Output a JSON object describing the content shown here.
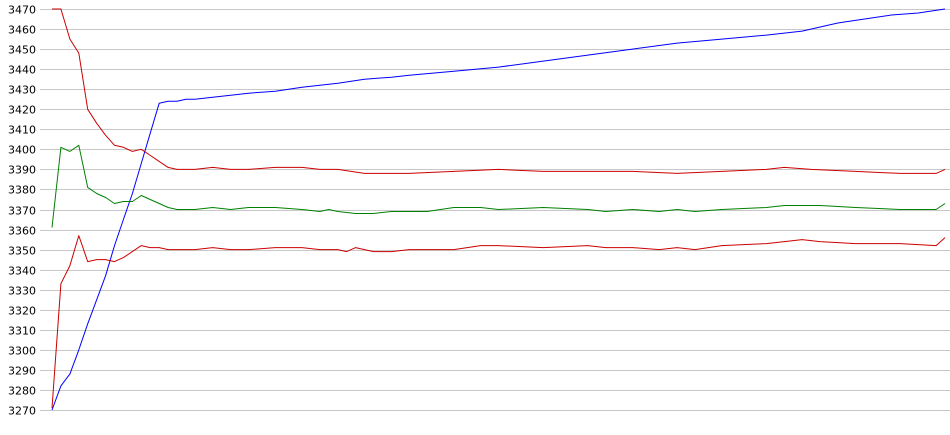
{
  "chart_data": {
    "type": "line",
    "title": "",
    "xlabel": "",
    "ylabel": "",
    "ylim": [
      3270,
      3470
    ],
    "y_ticks": [
      3270,
      3280,
      3290,
      3300,
      3310,
      3320,
      3330,
      3340,
      3350,
      3360,
      3370,
      3380,
      3390,
      3400,
      3410,
      3420,
      3430,
      3440,
      3450,
      3460,
      3470
    ],
    "grid": "horizontal",
    "legend": "none",
    "x_index_range": [
      0,
      100
    ],
    "series": [
      {
        "color": "#0000ff",
        "points": [
          [
            0,
            3270
          ],
          [
            1,
            3282
          ],
          [
            2,
            3288
          ],
          [
            3,
            3300
          ],
          [
            4,
            3313
          ],
          [
            5,
            3325
          ],
          [
            6,
            3337
          ],
          [
            7,
            3352
          ],
          [
            8,
            3365
          ],
          [
            9,
            3378
          ],
          [
            10,
            3393
          ],
          [
            11,
            3408
          ],
          [
            12,
            3423
          ],
          [
            13,
            3424
          ],
          [
            14,
            3424
          ],
          [
            15,
            3425
          ],
          [
            16,
            3425
          ],
          [
            18,
            3426
          ],
          [
            20,
            3427
          ],
          [
            22,
            3428
          ],
          [
            25,
            3429
          ],
          [
            28,
            3431
          ],
          [
            30,
            3432
          ],
          [
            32,
            3433
          ],
          [
            35,
            3435
          ],
          [
            38,
            3436
          ],
          [
            40,
            3437
          ],
          [
            45,
            3439
          ],
          [
            50,
            3441
          ],
          [
            55,
            3444
          ],
          [
            60,
            3447
          ],
          [
            65,
            3450
          ],
          [
            70,
            3453
          ],
          [
            75,
            3455
          ],
          [
            80,
            3457
          ],
          [
            84,
            3459
          ],
          [
            88,
            3463
          ],
          [
            91,
            3465
          ],
          [
            94,
            3467
          ],
          [
            97,
            3468
          ],
          [
            100,
            3470
          ]
        ]
      },
      {
        "color": "#cc0000",
        "points": [
          [
            0,
            3470
          ],
          [
            1,
            3470
          ],
          [
            2,
            3455
          ],
          [
            3,
            3448
          ],
          [
            4,
            3420
          ],
          [
            5,
            3413
          ],
          [
            6,
            3407
          ],
          [
            7,
            3402
          ],
          [
            8,
            3401
          ],
          [
            9,
            3399
          ],
          [
            10,
            3400
          ],
          [
            11,
            3397
          ],
          [
            12,
            3394
          ],
          [
            13,
            3391
          ],
          [
            14,
            3390
          ],
          [
            15,
            3390
          ],
          [
            16,
            3390
          ],
          [
            18,
            3391
          ],
          [
            20,
            3390
          ],
          [
            22,
            3390
          ],
          [
            25,
            3391
          ],
          [
            28,
            3391
          ],
          [
            30,
            3390
          ],
          [
            32,
            3390
          ],
          [
            35,
            3388
          ],
          [
            38,
            3388
          ],
          [
            40,
            3388
          ],
          [
            45,
            3389
          ],
          [
            50,
            3390
          ],
          [
            55,
            3389
          ],
          [
            60,
            3389
          ],
          [
            65,
            3389
          ],
          [
            70,
            3388
          ],
          [
            75,
            3389
          ],
          [
            80,
            3390
          ],
          [
            82,
            3391
          ],
          [
            85,
            3390
          ],
          [
            90,
            3389
          ],
          [
            95,
            3388
          ],
          [
            99,
            3388
          ],
          [
            100,
            3390
          ]
        ]
      },
      {
        "color": "#008000",
        "points": [
          [
            0,
            3361
          ],
          [
            1,
            3401
          ],
          [
            2,
            3399
          ],
          [
            3,
            3402
          ],
          [
            4,
            3381
          ],
          [
            5,
            3378
          ],
          [
            6,
            3376
          ],
          [
            7,
            3373
          ],
          [
            8,
            3374
          ],
          [
            9,
            3374
          ],
          [
            10,
            3377
          ],
          [
            11,
            3375
          ],
          [
            12,
            3373
          ],
          [
            13,
            3371
          ],
          [
            14,
            3370
          ],
          [
            15,
            3370
          ],
          [
            16,
            3370
          ],
          [
            18,
            3371
          ],
          [
            20,
            3370
          ],
          [
            22,
            3371
          ],
          [
            25,
            3371
          ],
          [
            28,
            3370
          ],
          [
            30,
            3369
          ],
          [
            31,
            3370
          ],
          [
            32,
            3369
          ],
          [
            34,
            3368
          ],
          [
            36,
            3368
          ],
          [
            38,
            3369
          ],
          [
            40,
            3369
          ],
          [
            42,
            3369
          ],
          [
            45,
            3371
          ],
          [
            48,
            3371
          ],
          [
            50,
            3370
          ],
          [
            55,
            3371
          ],
          [
            60,
            3370
          ],
          [
            62,
            3369
          ],
          [
            65,
            3370
          ],
          [
            68,
            3369
          ],
          [
            70,
            3370
          ],
          [
            72,
            3369
          ],
          [
            75,
            3370
          ],
          [
            80,
            3371
          ],
          [
            82,
            3372
          ],
          [
            84,
            3372
          ],
          [
            86,
            3372
          ],
          [
            90,
            3371
          ],
          [
            95,
            3370
          ],
          [
            99,
            3370
          ],
          [
            100,
            3373
          ]
        ]
      },
      {
        "color": "#cc0000",
        "points": [
          [
            0,
            3271
          ],
          [
            1,
            3333
          ],
          [
            2,
            3342
          ],
          [
            3,
            3357
          ],
          [
            4,
            3344
          ],
          [
            5,
            3345
          ],
          [
            6,
            3345
          ],
          [
            7,
            3344
          ],
          [
            8,
            3346
          ],
          [
            9,
            3349
          ],
          [
            10,
            3352
          ],
          [
            11,
            3351
          ],
          [
            12,
            3351
          ],
          [
            13,
            3350
          ],
          [
            14,
            3350
          ],
          [
            15,
            3350
          ],
          [
            16,
            3350
          ],
          [
            18,
            3351
          ],
          [
            20,
            3350
          ],
          [
            22,
            3350
          ],
          [
            25,
            3351
          ],
          [
            28,
            3351
          ],
          [
            30,
            3350
          ],
          [
            32,
            3350
          ],
          [
            33,
            3349
          ],
          [
            34,
            3351
          ],
          [
            36,
            3349
          ],
          [
            38,
            3349
          ],
          [
            40,
            3350
          ],
          [
            45,
            3350
          ],
          [
            48,
            3352
          ],
          [
            50,
            3352
          ],
          [
            55,
            3351
          ],
          [
            60,
            3352
          ],
          [
            62,
            3351
          ],
          [
            65,
            3351
          ],
          [
            68,
            3350
          ],
          [
            70,
            3351
          ],
          [
            72,
            3350
          ],
          [
            75,
            3352
          ],
          [
            80,
            3353
          ],
          [
            82,
            3354
          ],
          [
            84,
            3355
          ],
          [
            86,
            3354
          ],
          [
            90,
            3353
          ],
          [
            95,
            3353
          ],
          [
            99,
            3352
          ],
          [
            100,
            3356
          ]
        ]
      }
    ]
  }
}
